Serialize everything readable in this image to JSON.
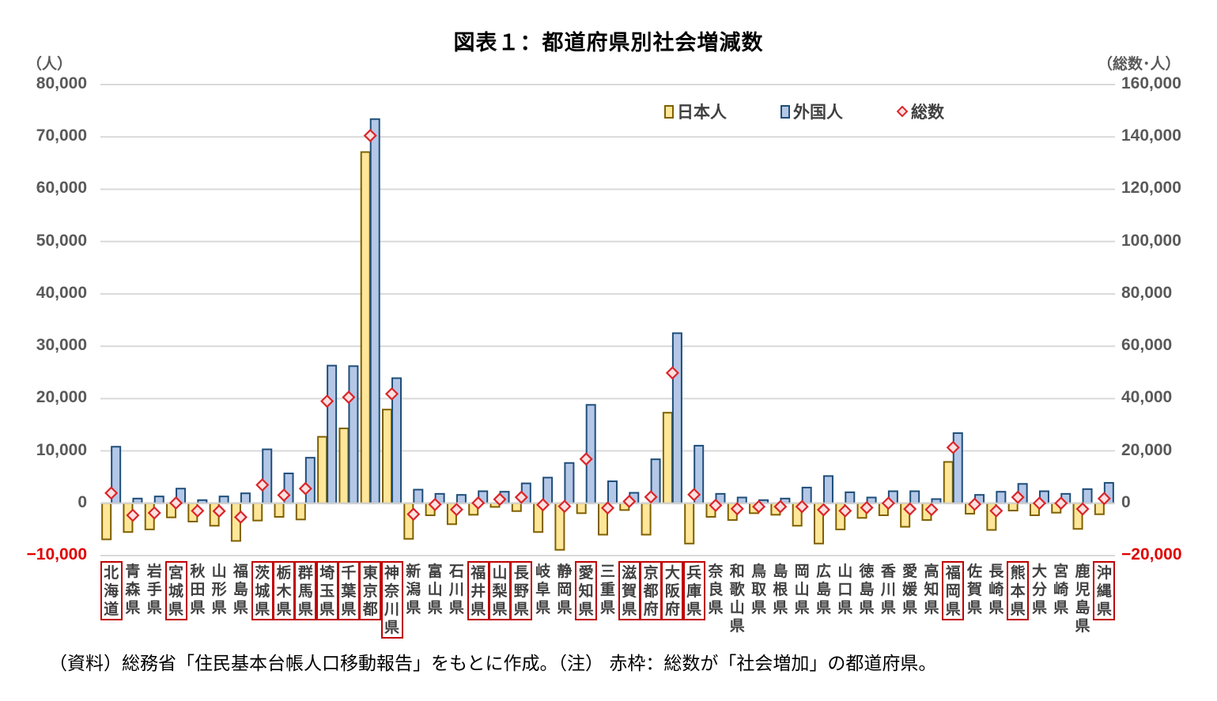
{
  "title": "図表１：都道府県別社会増減数",
  "axis": {
    "left_unit": "（人）",
    "right_unit": "（総数･人）",
    "left_ticks": [
      "80,000",
      "70,000",
      "60,000",
      "50,000",
      "40,000",
      "30,000",
      "20,000",
      "10,000",
      "0",
      "−10,000"
    ],
    "right_ticks": [
      "160,000",
      "140,000",
      "120,000",
      "100,000",
      "80,000",
      "60,000",
      "40,000",
      "20,000",
      "0",
      "−20,000"
    ]
  },
  "legend": {
    "japanese": "日本人",
    "foreign": "外国人",
    "total": "総数"
  },
  "colors": {
    "japanese_fill": "#FFE699",
    "japanese_stroke": "#7F6000",
    "foreign_fill": "#B4C7E7",
    "foreign_stroke": "#1F4E79",
    "total_marker": "#D9262A",
    "highlight_box": "#C00000",
    "negative_tick": "#E00000"
  },
  "footer": "（資料）総務省「住民基本台帳人口移動報告」をもとに作成。（注） 赤枠：総数が「社会増加」の都道府県。",
  "chart_data": {
    "type": "bar",
    "title": "図表１：都道府県別社会増減数",
    "xlabel": "",
    "ylabel": "（人）",
    "y2label": "（総数･人）",
    "ylim": [
      -10000,
      80000
    ],
    "y2lim": [
      -20000,
      160000
    ],
    "grid": true,
    "legend_position": "top-right",
    "categories": [
      "北海道",
      "青森県",
      "岩手県",
      "宮城県",
      "秋田県",
      "山形県",
      "福島県",
      "茨城県",
      "栃木県",
      "群馬県",
      "埼玉県",
      "千葉県",
      "東京都",
      "神奈川県",
      "新潟県",
      "富山県",
      "石川県",
      "福井県",
      "山梨県",
      "長野県",
      "岐阜県",
      "静岡県",
      "愛知県",
      "三重県",
      "滋賀県",
      "京都府",
      "大阪府",
      "兵庫県",
      "奈良県",
      "和歌山県",
      "鳥取県",
      "島根県",
      "岡山県",
      "広島県",
      "山口県",
      "徳島県",
      "香川県",
      "愛媛県",
      "高知県",
      "福岡県",
      "佐賀県",
      "長崎県",
      "熊本県",
      "大分県",
      "宮崎県",
      "鹿児島県",
      "沖縄県"
    ],
    "highlighted": [
      true,
      false,
      false,
      true,
      false,
      false,
      false,
      true,
      true,
      true,
      true,
      true,
      true,
      true,
      false,
      false,
      false,
      true,
      true,
      true,
      false,
      false,
      true,
      false,
      true,
      true,
      true,
      true,
      false,
      false,
      false,
      false,
      false,
      false,
      false,
      false,
      false,
      false,
      false,
      true,
      false,
      false,
      true,
      false,
      false,
      false,
      true
    ],
    "series": [
      {
        "name": "日本人",
        "axis": "left",
        "type": "bar",
        "values": [
          -6900,
          -5500,
          -5000,
          -2700,
          -3500,
          -4300,
          -7200,
          -3300,
          -2600,
          -3100,
          12700,
          14300,
          67100,
          17900,
          -6800,
          -2300,
          -4000,
          -2200,
          -700,
          -1500,
          -5500,
          -8900,
          -1900,
          -6000,
          -1300,
          -6000,
          17300,
          -7700,
          -2600,
          -3200,
          -1900,
          -2200,
          -4300,
          -7700,
          -5000,
          -2800,
          -2300,
          -4500,
          -3200,
          7900,
          -2000,
          -5100,
          -1400,
          -2300,
          -1800,
          -4900,
          -2100
        ]
      },
      {
        "name": "外国人",
        "axis": "left",
        "type": "bar",
        "values": [
          10800,
          900,
          1300,
          2800,
          600,
          1300,
          1900,
          10300,
          5700,
          8700,
          26300,
          26200,
          73400,
          23900,
          2600,
          1800,
          1600,
          2300,
          2200,
          3800,
          4900,
          7700,
          18800,
          4200,
          2000,
          8400,
          32500,
          11000,
          1800,
          1100,
          600,
          900,
          3000,
          5200,
          2100,
          1100,
          2300,
          2300,
          800,
          13400,
          1600,
          2200,
          3700,
          2300,
          1800,
          2700,
          3900
        ]
      },
      {
        "name": "総数",
        "axis": "right",
        "type": "scatter",
        "values": [
          3900,
          -4600,
          -3700,
          100,
          -2900,
          -3000,
          -5300,
          7000,
          3100,
          5600,
          39000,
          40500,
          140500,
          41800,
          -4200,
          -500,
          -2400,
          100,
          1500,
          2300,
          -600,
          -1200,
          16900,
          -1800,
          700,
          2400,
          49800,
          3300,
          -800,
          -2100,
          -1300,
          -1300,
          -1300,
          -2500,
          -2900,
          -1700,
          0,
          -2200,
          -2400,
          21300,
          -400,
          -2900,
          2300,
          0,
          0,
          -2200,
          1800
        ]
      }
    ]
  }
}
